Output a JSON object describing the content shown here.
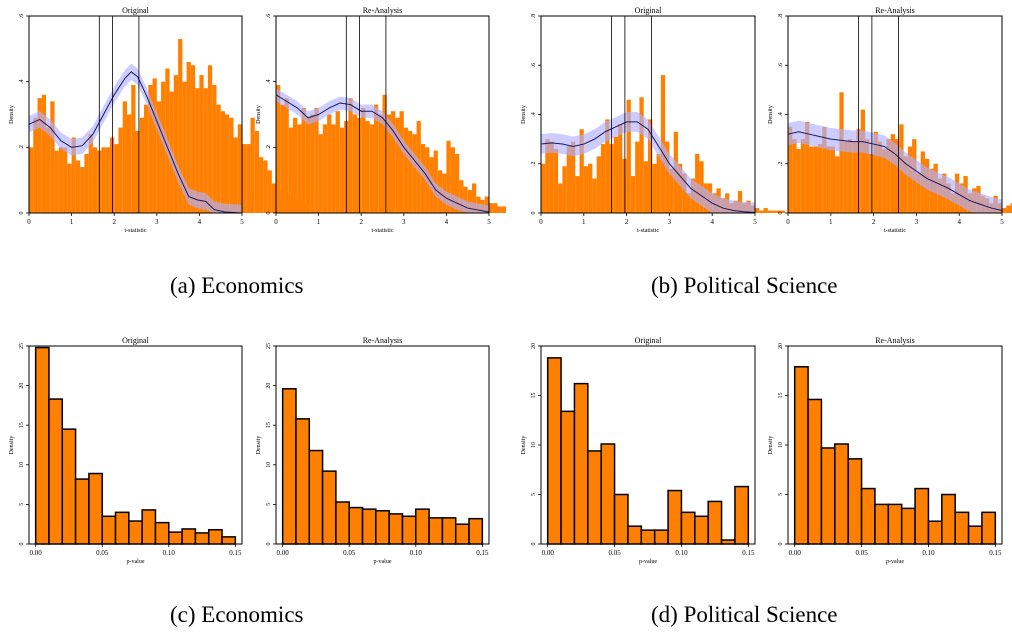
{
  "captions": {
    "a": "(a) Economics",
    "b": "(b) Political Science",
    "c": "(c) Economics",
    "d": "(d) Political Science"
  },
  "colors": {
    "bar": "#ff7f00",
    "band": "#b0b0ff",
    "density_line": "#1a1a5c",
    "axis": "#000000"
  },
  "chart_data": [
    {
      "id": "econ-t-original",
      "type": "bar",
      "title": "Original",
      "xlabel": "t-statistic",
      "ylabel": "Density",
      "xlim": [
        0,
        5
      ],
      "ylim": [
        0,
        0.6
      ],
      "xticks": [
        "0",
        "1",
        "2",
        "3",
        "4",
        "5"
      ],
      "yticks": [
        {
          "v": 0,
          "label": "0"
        },
        {
          "v": 0.2,
          "label": ".2"
        },
        {
          "v": 0.4,
          "label": ".4"
        },
        {
          "v": 0.6,
          "label": ".6"
        }
      ],
      "bin_width": 0.1,
      "bar_outline": false,
      "values": [
        0.2,
        0.29,
        0.35,
        0.36,
        0.26,
        0.34,
        0.19,
        0.2,
        0.2,
        0.15,
        0.23,
        0.16,
        0.14,
        0.18,
        0.24,
        0.2,
        0.19,
        0.2,
        0.2,
        0.23,
        0.21,
        0.26,
        0.34,
        0.3,
        0.39,
        0.25,
        0.29,
        0.33,
        0.39,
        0.41,
        0.34,
        0.4,
        0.44,
        0.37,
        0.42,
        0.53,
        0.4,
        0.46,
        0.45,
        0.38,
        0.42,
        0.38,
        0.45,
        0.39,
        0.33,
        0.31,
        0.3,
        0.29,
        0.23,
        0.27,
        0.21,
        0.21,
        0.29,
        0.25,
        0.17,
        0.16,
        0.13,
        0.09,
        0.07,
        0.06,
        0.06,
        0.04,
        0.04,
        0.03,
        0.03
      ],
      "density": [
        [
          0,
          0.27
        ],
        [
          0.25,
          0.285
        ],
        [
          0.5,
          0.26
        ],
        [
          0.75,
          0.22
        ],
        [
          1,
          0.2
        ],
        [
          1.25,
          0.205
        ],
        [
          1.5,
          0.24
        ],
        [
          1.75,
          0.3
        ],
        [
          2,
          0.36
        ],
        [
          2.25,
          0.41
        ],
        [
          2.4,
          0.43
        ],
        [
          2.55,
          0.415
        ],
        [
          2.75,
          0.36
        ],
        [
          3,
          0.28
        ],
        [
          3.25,
          0.2
        ],
        [
          3.5,
          0.12
        ],
        [
          3.75,
          0.05
        ],
        [
          3.95,
          0.04
        ],
        [
          4.15,
          0.035
        ],
        [
          4.35,
          0.01
        ],
        [
          4.6,
          0.003
        ],
        [
          5,
          0
        ]
      ],
      "band_halfwidth": 0.025,
      "vlines": [
        1.65,
        1.96,
        2.58
      ]
    },
    {
      "id": "econ-t-reanalysis",
      "type": "bar",
      "title": "Re-Analysis",
      "xlabel": "t-statistic",
      "ylabel": "Density",
      "xlim": [
        0,
        5
      ],
      "ylim": [
        0,
        0.6
      ],
      "xticks": [
        "0",
        "1",
        "2",
        "3",
        "4",
        "5"
      ],
      "yticks": [
        {
          "v": 0,
          "label": "0"
        },
        {
          "v": 0.2,
          "label": ".2"
        },
        {
          "v": 0.4,
          "label": ".4"
        },
        {
          "v": 0.6,
          "label": ".6"
        }
      ],
      "bin_width": 0.1,
      "bar_outline": false,
      "values": [
        0.39,
        0.33,
        0.35,
        0.26,
        0.29,
        0.27,
        0.32,
        0.29,
        0.3,
        0.32,
        0.24,
        0.27,
        0.3,
        0.27,
        0.31,
        0.26,
        0.28,
        0.35,
        0.3,
        0.29,
        0.32,
        0.28,
        0.27,
        0.33,
        0.3,
        0.36,
        0.3,
        0.31,
        0.29,
        0.31,
        0.26,
        0.25,
        0.24,
        0.28,
        0.21,
        0.2,
        0.17,
        0.19,
        0.13,
        0.12,
        0.22,
        0.2,
        0.18,
        0.1,
        0.08,
        0.07,
        0.09,
        0.05,
        0.04,
        0.05,
        0.03,
        0.03,
        0.02,
        0.02
      ],
      "density": [
        [
          0,
          0.36
        ],
        [
          0.25,
          0.34
        ],
        [
          0.5,
          0.32
        ],
        [
          0.75,
          0.29
        ],
        [
          1,
          0.3
        ],
        [
          1.25,
          0.32
        ],
        [
          1.5,
          0.335
        ],
        [
          1.75,
          0.33
        ],
        [
          2,
          0.31
        ],
        [
          2.25,
          0.31
        ],
        [
          2.5,
          0.29
        ],
        [
          2.75,
          0.25
        ],
        [
          3,
          0.2
        ],
        [
          3.25,
          0.16
        ],
        [
          3.5,
          0.12
        ],
        [
          3.75,
          0.07
        ],
        [
          4,
          0.045
        ],
        [
          4.25,
          0.03
        ],
        [
          4.5,
          0.015
        ],
        [
          5,
          0.003
        ]
      ],
      "band_halfwidth": 0.02,
      "vlines": [
        1.65,
        1.96,
        2.58
      ]
    },
    {
      "id": "polisci-t-original",
      "type": "bar",
      "title": "Original",
      "xlabel": "t-statistic",
      "ylabel": "Density",
      "xlim": [
        0,
        5
      ],
      "ylim": [
        0,
        0.8
      ],
      "xticks": [
        "0",
        "1",
        "2",
        "3",
        "4",
        "5"
      ],
      "yticks": [
        {
          "v": 0,
          "label": "0"
        },
        {
          "v": 0.2,
          "label": ".2"
        },
        {
          "v": 0.4,
          "label": ".4"
        },
        {
          "v": 0.6,
          "label": ".6"
        },
        {
          "v": 0.8,
          "label": ".8"
        }
      ],
      "bin_width": 0.1,
      "bar_outline": false,
      "values": [
        0.2,
        0.3,
        0.29,
        0.26,
        0.12,
        0.19,
        0.27,
        0.29,
        0.15,
        0.34,
        0.19,
        0.2,
        0.14,
        0.23,
        0.28,
        0.38,
        0.28,
        0.31,
        0.36,
        0.22,
        0.46,
        0.15,
        0.29,
        0.47,
        0.21,
        0.38,
        0.2,
        0.24,
        0.56,
        0.29,
        0.18,
        0.33,
        0.2,
        0.16,
        0.08,
        0.14,
        0.24,
        0.21,
        0.12,
        0.12,
        0.08,
        0.1,
        0.06,
        0.08,
        0.04,
        0.05,
        0.09,
        0.04,
        0.05,
        0.03,
        0.02,
        0.01,
        0.02,
        0.01,
        0.01,
        0.01,
        0.01
      ],
      "density": [
        [
          0,
          0.28
        ],
        [
          0.25,
          0.285
        ],
        [
          0.5,
          0.28
        ],
        [
          0.75,
          0.27
        ],
        [
          1,
          0.28
        ],
        [
          1.25,
          0.3
        ],
        [
          1.5,
          0.33
        ],
        [
          1.75,
          0.35
        ],
        [
          2,
          0.37
        ],
        [
          2.25,
          0.37
        ],
        [
          2.5,
          0.34
        ],
        [
          2.75,
          0.27
        ],
        [
          3,
          0.2
        ],
        [
          3.25,
          0.15
        ],
        [
          3.5,
          0.1
        ],
        [
          3.75,
          0.07
        ],
        [
          4,
          0.04
        ],
        [
          4.25,
          0.02
        ],
        [
          4.5,
          0.01
        ],
        [
          4.75,
          0.005
        ],
        [
          5,
          0.002
        ]
      ],
      "band_halfwidth": 0.04,
      "vlines": [
        1.65,
        1.96,
        2.58
      ]
    },
    {
      "id": "polisci-t-reanalysis",
      "type": "bar",
      "title": "Re-Analysis",
      "xlabel": "t-statistic",
      "ylabel": "Density",
      "xlim": [
        0,
        5
      ],
      "ylim": [
        0,
        0.8
      ],
      "xticks": [
        "0",
        "1",
        "2",
        "3",
        "4",
        "5"
      ],
      "yticks": [
        {
          "v": 0,
          "label": "0"
        },
        {
          "v": 0.2,
          "label": ".2"
        },
        {
          "v": 0.4,
          "label": ".4"
        },
        {
          "v": 0.6,
          "label": ".6"
        },
        {
          "v": 0.8,
          "label": ".8"
        }
      ],
      "bin_width": 0.1,
      "bar_outline": false,
      "values": [
        0.35,
        0.3,
        0.26,
        0.3,
        0.37,
        0.27,
        0.27,
        0.28,
        0.35,
        0.27,
        0.27,
        0.23,
        0.49,
        0.29,
        0.3,
        0.29,
        0.34,
        0.42,
        0.3,
        0.24,
        0.33,
        0.29,
        0.26,
        0.3,
        0.32,
        0.3,
        0.36,
        0.23,
        0.27,
        0.3,
        0.16,
        0.25,
        0.22,
        0.18,
        0.2,
        0.14,
        0.16,
        0.12,
        0.08,
        0.16,
        0.12,
        0.15,
        0.08,
        0.1,
        0.11,
        0.07,
        0.06,
        0.04,
        0.07,
        0.04,
        0.02,
        0.03,
        0.04
      ],
      "density": [
        [
          0,
          0.32
        ],
        [
          0.25,
          0.33
        ],
        [
          0.5,
          0.32
        ],
        [
          0.75,
          0.31
        ],
        [
          1,
          0.3
        ],
        [
          1.25,
          0.295
        ],
        [
          1.5,
          0.29
        ],
        [
          1.75,
          0.29
        ],
        [
          2,
          0.28
        ],
        [
          2.25,
          0.27
        ],
        [
          2.5,
          0.24
        ],
        [
          2.75,
          0.2
        ],
        [
          3,
          0.17
        ],
        [
          3.25,
          0.14
        ],
        [
          3.5,
          0.12
        ],
        [
          3.75,
          0.1
        ],
        [
          4,
          0.075
        ],
        [
          4.25,
          0.05
        ],
        [
          4.5,
          0.035
        ],
        [
          4.75,
          0.02
        ],
        [
          5,
          0.01
        ]
      ],
      "band_halfwidth": 0.045,
      "vlines": [
        1.65,
        1.96,
        2.58
      ]
    },
    {
      "id": "econ-p-original",
      "type": "bar",
      "title": "Original",
      "xlabel": "p-value",
      "ylabel": "Density",
      "xlim": [
        -0.005,
        0.155
      ],
      "ylim": [
        0,
        25
      ],
      "xticks": [
        "0.00",
        "0.05",
        "0.10",
        "0.15"
      ],
      "yticks": [
        {
          "v": 0,
          "label": "0"
        },
        {
          "v": 5,
          "label": "5"
        },
        {
          "v": 10,
          "label": "10"
        },
        {
          "v": 15,
          "label": "15"
        },
        {
          "v": 20,
          "label": "20"
        },
        {
          "v": 25,
          "label": "25"
        }
      ],
      "bin_width": 0.01,
      "bar_outline": true,
      "values": [
        24.8,
        18.3,
        14.5,
        8.2,
        8.9,
        3.5,
        4.0,
        2.9,
        4.3,
        2.7,
        1.5,
        1.9,
        1.4,
        1.8,
        0.9
      ]
    },
    {
      "id": "econ-p-reanalysis",
      "type": "bar",
      "title": "Re-Analysis",
      "xlabel": "p-value",
      "ylabel": "Density",
      "xlim": [
        -0.005,
        0.155
      ],
      "ylim": [
        0,
        25
      ],
      "xticks": [
        "0.00",
        "0.05",
        "0.10",
        "0.15"
      ],
      "yticks": [
        {
          "v": 0,
          "label": "0"
        },
        {
          "v": 5,
          "label": "5"
        },
        {
          "v": 10,
          "label": "10"
        },
        {
          "v": 15,
          "label": "15"
        },
        {
          "v": 20,
          "label": "20"
        },
        {
          "v": 25,
          "label": "25"
        }
      ],
      "bin_width": 0.01,
      "bar_outline": true,
      "values": [
        19.6,
        15.8,
        11.8,
        9.2,
        5.3,
        4.6,
        4.4,
        4.2,
        3.8,
        3.5,
        4.4,
        3.3,
        3.3,
        2.5,
        3.2
      ]
    },
    {
      "id": "polisci-p-original",
      "type": "bar",
      "title": "Original",
      "xlabel": "p-value",
      "ylabel": "Density",
      "xlim": [
        -0.005,
        0.155
      ],
      "ylim": [
        0,
        20
      ],
      "xticks": [
        "0.00",
        "0.05",
        "0.10",
        "0.15"
      ],
      "yticks": [
        {
          "v": 0,
          "label": "0"
        },
        {
          "v": 5,
          "label": "5"
        },
        {
          "v": 10,
          "label": "10"
        },
        {
          "v": 15,
          "label": "15"
        },
        {
          "v": 20,
          "label": "20"
        }
      ],
      "bin_width": 0.01,
      "bar_outline": true,
      "values": [
        18.8,
        13.4,
        16.2,
        9.4,
        10.1,
        5.0,
        1.8,
        1.4,
        1.4,
        5.4,
        3.2,
        2.8,
        4.3,
        0.4,
        5.8
      ]
    },
    {
      "id": "polisci-p-reanalysis",
      "type": "bar",
      "title": "Re-Analysis",
      "xlabel": "p-value",
      "ylabel": "Density",
      "xlim": [
        -0.005,
        0.155
      ],
      "ylim": [
        0,
        20
      ],
      "xticks": [
        "0.00",
        "0.05",
        "0.10",
        "0.15"
      ],
      "yticks": [
        {
          "v": 0,
          "label": "0"
        },
        {
          "v": 5,
          "label": "5"
        },
        {
          "v": 10,
          "label": "10"
        },
        {
          "v": 15,
          "label": "15"
        },
        {
          "v": 20,
          "label": "20"
        }
      ],
      "bin_width": 0.01,
      "bar_outline": true,
      "values": [
        17.9,
        14.6,
        9.7,
        10.1,
        8.6,
        5.6,
        4.0,
        4.0,
        3.6,
        5.6,
        2.3,
        5.0,
        3.2,
        1.8,
        3.2
      ]
    }
  ]
}
